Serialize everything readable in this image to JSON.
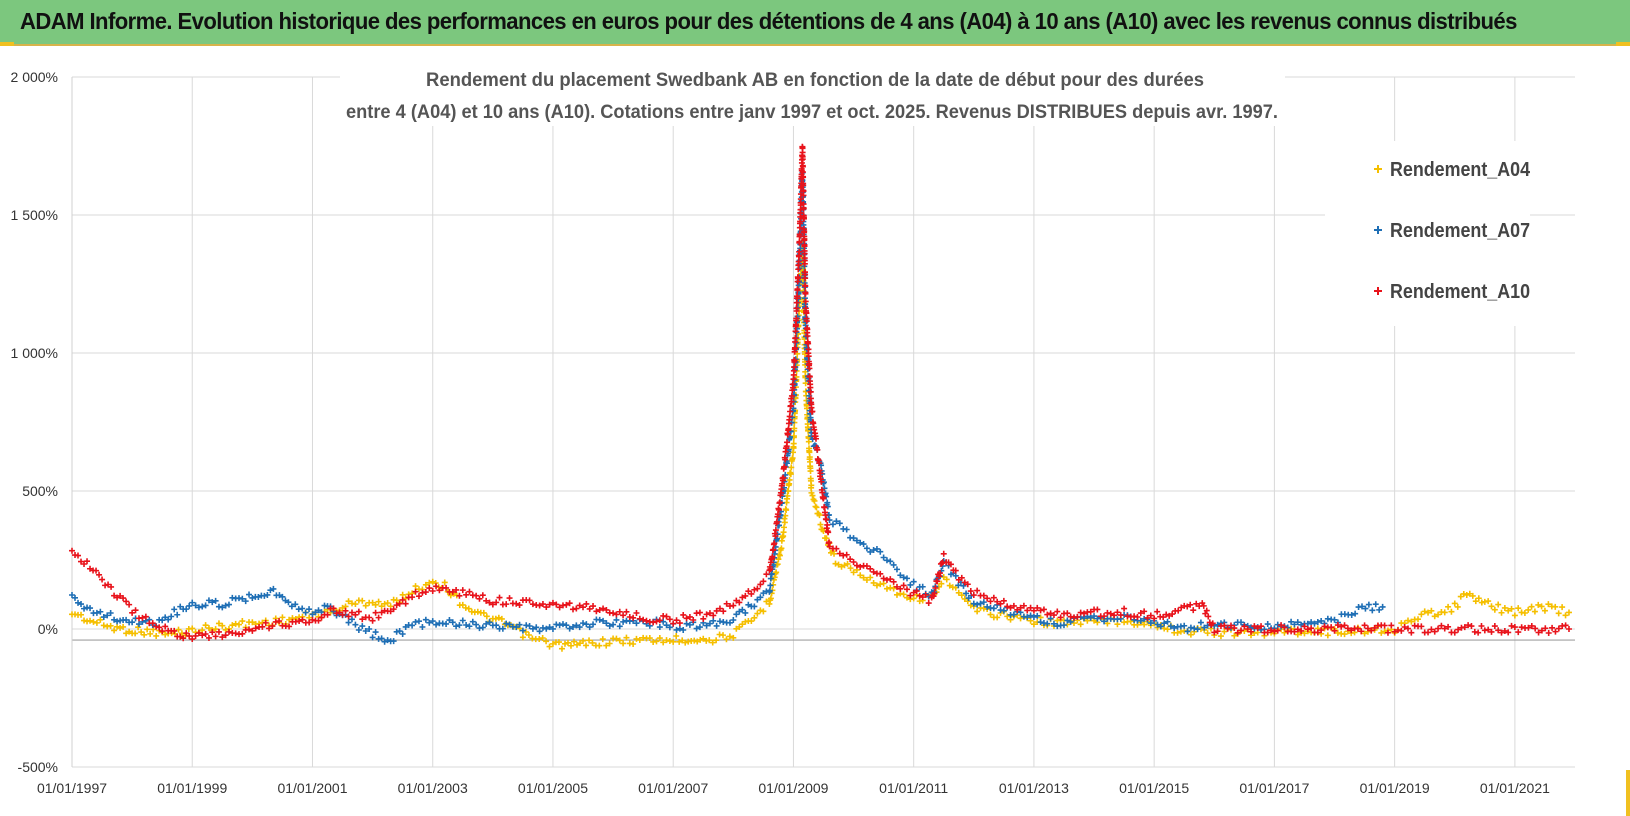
{
  "header": {
    "title": "ADAM Informe. Evolution historique des performances en euros pour des détentions de 4 ans (A04) à 10 ans (A10) avec les revenus connus distribués"
  },
  "colors": {
    "banner": "#7cc77e",
    "A04": "#f5bf00",
    "A07": "#1f6fb5",
    "A10": "#e8131b",
    "grid": "#d9d9d9"
  },
  "chart_data": {
    "type": "scatter",
    "title_line1": "Rendement du placement Swedbank AB en fonction de la date de début pour des durées",
    "title_line2": "entre 4 (A04) et 10 ans (A10). Cotations entre janv 1997 et oct. 2025. Revenus DISTRIBUES depuis avr. 1997.",
    "xlabel": "",
    "ylabel": "",
    "ylim": [
      -500,
      2000
    ],
    "xlim": [
      1997.0,
      2022.0
    ],
    "y_ticks": [
      {
        "value": 2000,
        "label": "2 000%"
      },
      {
        "value": 1500,
        "label": "1 500%"
      },
      {
        "value": 1000,
        "label": "1 000%"
      },
      {
        "value": 500,
        "label": "500%"
      },
      {
        "value": 0,
        "label": "0%"
      },
      {
        "value": -500,
        "label": "-500%"
      }
    ],
    "x_ticks": [
      {
        "value": 1997,
        "label": "01/01/1997"
      },
      {
        "value": 1999,
        "label": "01/01/1999"
      },
      {
        "value": 2001,
        "label": "01/01/2001"
      },
      {
        "value": 2003,
        "label": "01/01/2003"
      },
      {
        "value": 2005,
        "label": "01/01/2005"
      },
      {
        "value": 2007,
        "label": "01/01/2007"
      },
      {
        "value": 2009,
        "label": "01/01/2009"
      },
      {
        "value": 2011,
        "label": "01/01/2011"
      },
      {
        "value": 2013,
        "label": "01/01/2013"
      },
      {
        "value": 2015,
        "label": "01/01/2015"
      },
      {
        "value": 2017,
        "label": "01/01/2017"
      },
      {
        "value": 2019,
        "label": "01/01/2019"
      },
      {
        "value": 2021,
        "label": "01/01/2021"
      }
    ],
    "legend": "right",
    "grid": true,
    "series": [
      {
        "name": "Rendement_A04",
        "color": "#f5bf00",
        "points": [
          [
            1997.0,
            60
          ],
          [
            1997.3,
            30
          ],
          [
            1997.7,
            5
          ],
          [
            1998.0,
            -5
          ],
          [
            1998.3,
            -10
          ],
          [
            1998.6,
            -20
          ],
          [
            1999.0,
            -5
          ],
          [
            1999.5,
            10
          ],
          [
            2000.0,
            20
          ],
          [
            2000.5,
            30
          ],
          [
            2001.0,
            50
          ],
          [
            2001.3,
            60
          ],
          [
            2001.6,
            90
          ],
          [
            2002.0,
            100
          ],
          [
            2002.3,
            85
          ],
          [
            2002.6,
            130
          ],
          [
            2003.0,
            175
          ],
          [
            2003.2,
            155
          ],
          [
            2003.5,
            90
          ],
          [
            2003.8,
            50
          ],
          [
            2004.0,
            35
          ],
          [
            2004.3,
            10
          ],
          [
            2004.6,
            -30
          ],
          [
            2005.0,
            -55
          ],
          [
            2005.3,
            -60
          ],
          [
            2005.6,
            -50
          ],
          [
            2006.0,
            -45
          ],
          [
            2006.5,
            -40
          ],
          [
            2007.0,
            -40
          ],
          [
            2007.3,
            -35
          ],
          [
            2007.6,
            -40
          ],
          [
            2008.0,
            -20
          ],
          [
            2008.3,
            30
          ],
          [
            2008.6,
            100
          ],
          [
            2008.8,
            300
          ],
          [
            2009.0,
            650
          ],
          [
            2009.1,
            1200
          ],
          [
            2009.15,
            1400
          ],
          [
            2009.2,
            900
          ],
          [
            2009.3,
            500
          ],
          [
            2009.5,
            350
          ],
          [
            2009.7,
            250
          ],
          [
            2010.0,
            210
          ],
          [
            2010.5,
            160
          ],
          [
            2011.0,
            110
          ],
          [
            2011.3,
            120
          ],
          [
            2011.5,
            180
          ],
          [
            2011.7,
            140
          ],
          [
            2012.0,
            70
          ],
          [
            2012.5,
            50
          ],
          [
            2013.0,
            30
          ],
          [
            2013.5,
            20
          ],
          [
            2014.0,
            30
          ],
          [
            2014.5,
            30
          ],
          [
            2015.0,
            20
          ],
          [
            2015.5,
            -10
          ],
          [
            2016.0,
            -10
          ],
          [
            2016.5,
            -15
          ],
          [
            2017.0,
            -10
          ],
          [
            2017.5,
            -5
          ],
          [
            2018.0,
            -10
          ],
          [
            2018.5,
            -5
          ],
          [
            2019.0,
            0
          ],
          [
            2019.5,
            50
          ],
          [
            2020.0,
            80
          ],
          [
            2020.2,
            130
          ],
          [
            2020.5,
            90
          ],
          [
            2021.0,
            60
          ],
          [
            2021.5,
            80
          ],
          [
            2021.9,
            60
          ]
        ]
      },
      {
        "name": "Rendement_A07",
        "color": "#1f6fb5",
        "points": [
          [
            1997.0,
            110
          ],
          [
            1997.3,
            70
          ],
          [
            1997.7,
            40
          ],
          [
            1998.0,
            30
          ],
          [
            1998.4,
            20
          ],
          [
            1998.7,
            60
          ],
          [
            1999.0,
            90
          ],
          [
            1999.5,
            90
          ],
          [
            2000.0,
            120
          ],
          [
            2000.3,
            140
          ],
          [
            2000.6,
            100
          ],
          [
            2001.0,
            60
          ],
          [
            2001.3,
            80
          ],
          [
            2001.6,
            30
          ],
          [
            2002.0,
            -20
          ],
          [
            2002.3,
            -40
          ],
          [
            2002.6,
            10
          ],
          [
            2003.0,
            30
          ],
          [
            2003.5,
            20
          ],
          [
            2004.0,
            10
          ],
          [
            2004.5,
            0
          ],
          [
            2005.0,
            0
          ],
          [
            2005.5,
            20
          ],
          [
            2006.0,
            20
          ],
          [
            2006.5,
            30
          ],
          [
            2007.0,
            10
          ],
          [
            2007.5,
            10
          ],
          [
            2008.0,
            40
          ],
          [
            2008.3,
            80
          ],
          [
            2008.6,
            140
          ],
          [
            2008.8,
            450
          ],
          [
            2009.0,
            800
          ],
          [
            2009.1,
            1300
          ],
          [
            2009.15,
            1650
          ],
          [
            2009.2,
            1100
          ],
          [
            2009.3,
            700
          ],
          [
            2009.45,
            600
          ],
          [
            2009.6,
            400
          ],
          [
            2010.0,
            330
          ],
          [
            2010.5,
            260
          ],
          [
            2011.0,
            160
          ],
          [
            2011.3,
            120
          ],
          [
            2011.5,
            240
          ],
          [
            2011.7,
            180
          ],
          [
            2012.0,
            100
          ],
          [
            2012.5,
            70
          ],
          [
            2013.0,
            40
          ],
          [
            2013.5,
            20
          ],
          [
            2014.0,
            40
          ],
          [
            2014.5,
            40
          ],
          [
            2015.0,
            30
          ],
          [
            2015.5,
            0
          ],
          [
            2016.0,
            20
          ],
          [
            2016.5,
            10
          ],
          [
            2017.0,
            10
          ],
          [
            2017.5,
            20
          ],
          [
            2018.0,
            30
          ],
          [
            2018.4,
            70
          ],
          [
            2018.8,
            80
          ]
        ]
      },
      {
        "name": "Rendement_A10",
        "color": "#e8131b",
        "points": [
          [
            1997.0,
            290
          ],
          [
            1997.3,
            220
          ],
          [
            1997.7,
            130
          ],
          [
            1998.0,
            70
          ],
          [
            1998.4,
            10
          ],
          [
            1998.7,
            -10
          ],
          [
            1999.0,
            -30
          ],
          [
            1999.5,
            -20
          ],
          [
            2000.0,
            0
          ],
          [
            2000.5,
            20
          ],
          [
            2001.0,
            30
          ],
          [
            2001.3,
            70
          ],
          [
            2001.6,
            60
          ],
          [
            2002.0,
            40
          ],
          [
            2002.3,
            70
          ],
          [
            2002.6,
            110
          ],
          [
            2003.0,
            150
          ],
          [
            2003.5,
            130
          ],
          [
            2004.0,
            100
          ],
          [
            2004.5,
            100
          ],
          [
            2005.0,
            90
          ],
          [
            2005.5,
            80
          ],
          [
            2006.0,
            60
          ],
          [
            2006.5,
            40
          ],
          [
            2007.0,
            30
          ],
          [
            2007.5,
            50
          ],
          [
            2008.0,
            90
          ],
          [
            2008.3,
            140
          ],
          [
            2008.6,
            200
          ],
          [
            2008.8,
            500
          ],
          [
            2009.0,
            900
          ],
          [
            2009.1,
            1400
          ],
          [
            2009.15,
            1750
          ],
          [
            2009.2,
            1200
          ],
          [
            2009.3,
            800
          ],
          [
            2009.45,
            550
          ],
          [
            2009.6,
            300
          ],
          [
            2010.0,
            250
          ],
          [
            2010.5,
            180
          ],
          [
            2011.0,
            130
          ],
          [
            2011.3,
            100
          ],
          [
            2011.5,
            260
          ],
          [
            2011.7,
            200
          ],
          [
            2012.0,
            130
          ],
          [
            2012.5,
            90
          ],
          [
            2013.0,
            70
          ],
          [
            2013.5,
            50
          ],
          [
            2014.0,
            60
          ],
          [
            2014.5,
            60
          ],
          [
            2015.0,
            50
          ],
          [
            2015.3,
            60
          ],
          [
            2015.6,
            80
          ],
          [
            2015.8,
            90
          ],
          [
            2016.0,
            0
          ],
          [
            2017.0,
            0
          ],
          [
            2018.0,
            0
          ],
          [
            2019.0,
            0
          ],
          [
            2020.0,
            0
          ],
          [
            2021.0,
            0
          ],
          [
            2021.9,
            0
          ]
        ]
      }
    ]
  }
}
